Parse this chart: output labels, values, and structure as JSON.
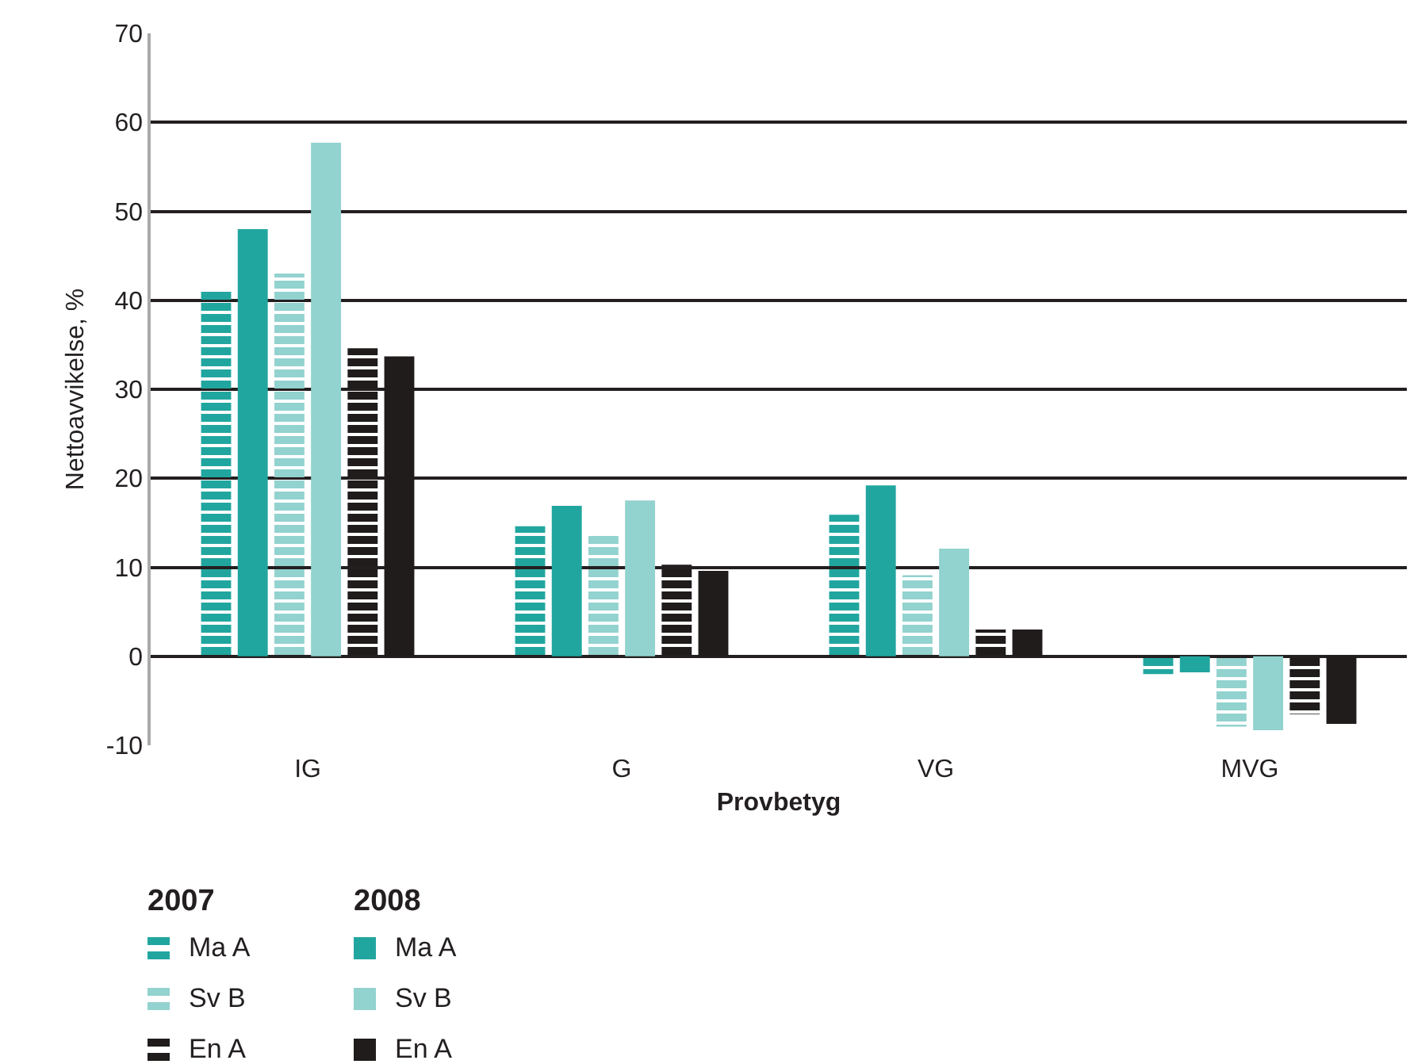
{
  "chart_data": {
    "type": "bar",
    "xlabel": "Provbetyg",
    "ylabel": "Nettoavvikelse, %",
    "legend_title": [
      "2007",
      "2008"
    ],
    "categories": [
      "IG",
      "G",
      "VG",
      "MVG"
    ],
    "series": [
      {
        "name": "Ma A",
        "color": "#21a69f",
        "values": [
          41,
          14.6,
          15.9,
          -2
        ]
      },
      {
        "name": "Ma A",
        "color": "#21a69f",
        "values": [
          48,
          16.9,
          19.2,
          -1.8
        ]
      },
      {
        "name": "Sv B",
        "color": "#92d2cf",
        "values": [
          43,
          13.7,
          9.1,
          -7.9
        ]
      },
      {
        "name": "Sv B",
        "color": "#92d2cf",
        "values": [
          57.7,
          17.5,
          12.1,
          -8.3
        ]
      },
      {
        "name": "En A",
        "color": "#1f1c1b",
        "values": [
          34.6,
          10.3,
          3,
          -6.5
        ]
      },
      {
        "name": "En A",
        "color": "#1f1c1b",
        "values": [
          33.7,
          9.6,
          3,
          -7.6
        ]
      }
    ],
    "ylim": [
      -10,
      70
    ],
    "yticks": [
      -10,
      0,
      10,
      20,
      30,
      40,
      50,
      60,
      70
    ],
    "grid": "y",
    "legend": "bottom left"
  }
}
